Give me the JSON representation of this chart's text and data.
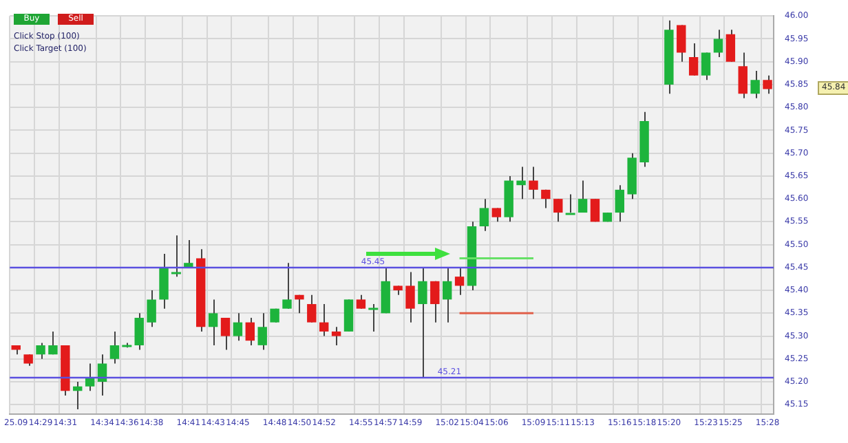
{
  "chart_data": {
    "type": "candlestick",
    "categories": [
      "25.09",
      null,
      "14:29",
      null,
      "14:31",
      null,
      null,
      "14:34",
      null,
      "14:36",
      null,
      "14:38",
      null,
      null,
      "14:41",
      null,
      "14:43",
      null,
      "14:45",
      null,
      null,
      "14:48",
      null,
      "14:50",
      null,
      "14:52",
      null,
      null,
      "14:55",
      null,
      "14:57",
      null,
      "14:59",
      null,
      null,
      "15:02",
      null,
      "15:04",
      null,
      "15:06",
      null,
      null,
      "15:09",
      null,
      "15:11",
      null,
      "15:13",
      null,
      null,
      "15:16",
      null,
      "15:18",
      null,
      "15:20",
      null,
      null,
      "15:23",
      null,
      "15:25",
      null,
      null,
      "15:28"
    ],
    "ohlc": [
      [
        45.28,
        45.28,
        45.26,
        45.27
      ],
      [
        45.26,
        45.26,
        45.235,
        45.24
      ],
      [
        45.26,
        45.285,
        45.25,
        45.28
      ],
      [
        45.26,
        45.31,
        45.26,
        45.28
      ],
      [
        45.28,
        45.28,
        45.17,
        45.18
      ],
      [
        45.18,
        45.2,
        45.14,
        45.19
      ],
      [
        45.19,
        45.24,
        45.18,
        45.21
      ],
      [
        45.2,
        45.26,
        45.17,
        45.24
      ],
      [
        45.25,
        45.31,
        45.24,
        45.28
      ],
      [
        45.28,
        45.285,
        45.275,
        45.28
      ],
      [
        45.28,
        45.35,
        45.27,
        45.34
      ],
      [
        45.33,
        45.4,
        45.32,
        45.38
      ],
      [
        45.38,
        45.48,
        45.36,
        45.45
      ],
      [
        45.44,
        45.52,
        45.43,
        45.44
      ],
      [
        45.45,
        45.51,
        45.45,
        45.46
      ],
      [
        45.47,
        45.49,
        45.31,
        45.32
      ],
      [
        45.32,
        45.38,
        45.28,
        45.35
      ],
      [
        45.34,
        45.34,
        45.27,
        45.3
      ],
      [
        45.3,
        45.35,
        45.29,
        45.33
      ],
      [
        45.33,
        45.34,
        45.28,
        45.29
      ],
      [
        45.28,
        45.35,
        45.27,
        45.32
      ],
      [
        45.33,
        45.36,
        45.33,
        45.36
      ],
      [
        45.36,
        45.46,
        45.36,
        45.38
      ],
      [
        45.39,
        45.39,
        45.35,
        45.38
      ],
      [
        45.37,
        45.39,
        45.33,
        45.33
      ],
      [
        45.33,
        45.37,
        45.3,
        45.31
      ],
      [
        45.31,
        45.32,
        45.28,
        45.3
      ],
      [
        45.31,
        45.38,
        45.31,
        45.38
      ],
      [
        45.38,
        45.39,
        45.36,
        45.36
      ],
      [
        45.36,
        45.37,
        45.31,
        45.36
      ],
      [
        45.35,
        45.45,
        45.35,
        45.42
      ],
      [
        45.41,
        45.41,
        45.39,
        45.4
      ],
      [
        45.41,
        45.44,
        45.33,
        45.36
      ],
      [
        45.37,
        45.45,
        45.21,
        45.42
      ],
      [
        45.42,
        45.42,
        45.33,
        45.37
      ],
      [
        45.38,
        45.45,
        45.33,
        45.42
      ],
      [
        45.43,
        45.45,
        45.39,
        45.41
      ],
      [
        45.41,
        45.55,
        45.4,
        45.54
      ],
      [
        45.54,
        45.6,
        45.53,
        45.58
      ],
      [
        45.58,
        45.58,
        45.55,
        45.56
      ],
      [
        45.56,
        45.65,
        45.55,
        45.64
      ],
      [
        45.63,
        45.67,
        45.6,
        45.64
      ],
      [
        45.64,
        45.67,
        45.6,
        45.62
      ],
      [
        45.62,
        45.62,
        45.58,
        45.6
      ],
      [
        45.6,
        45.6,
        45.55,
        45.57
      ],
      [
        45.57,
        45.61,
        45.57,
        45.57
      ],
      [
        45.57,
        45.64,
        45.57,
        45.6
      ],
      [
        45.6,
        45.6,
        45.55,
        45.55
      ],
      [
        45.55,
        45.57,
        45.55,
        45.57
      ],
      [
        45.57,
        45.63,
        45.55,
        45.62
      ],
      [
        45.61,
        45.7,
        45.6,
        45.69
      ],
      [
        45.68,
        45.79,
        45.67,
        45.77
      ],
      null,
      [
        45.85,
        45.99,
        45.83,
        45.97
      ],
      [
        45.98,
        45.98,
        45.9,
        45.92
      ],
      [
        45.91,
        45.94,
        45.87,
        45.87
      ],
      [
        45.87,
        45.92,
        45.86,
        45.92
      ],
      [
        45.92,
        45.97,
        45.91,
        45.95
      ],
      [
        45.96,
        45.97,
        45.9,
        45.9
      ],
      [
        45.89,
        45.92,
        45.82,
        45.83
      ],
      [
        45.83,
        45.88,
        45.82,
        45.86
      ],
      [
        45.86,
        45.87,
        45.83,
        45.84
      ]
    ],
    "colors": [
      "#e31b1b",
      "#e31b1b",
      "#1db43c",
      "#1db43c",
      "#e31b1b",
      "#1db43c",
      "#1db43c",
      "#1db43c",
      "#1db43c",
      "#1db43c",
      "#1db43c",
      "#1db43c",
      "#1db43c",
      "#1db43c",
      "#1db43c",
      "#e31b1b",
      "#1db43c",
      "#e31b1b",
      "#1db43c",
      "#e31b1b",
      "#1db43c",
      "#1db43c",
      "#1db43c",
      "#e31b1b",
      "#e31b1b",
      "#e31b1b",
      "#e31b1b",
      "#1db43c",
      "#e31b1b",
      "#1db43c",
      "#1db43c",
      "#e31b1b",
      "#e31b1b",
      "#1db43c",
      "#e31b1b",
      "#1db43c",
      "#e31b1b",
      "#1db43c",
      "#1db43c",
      "#e31b1b",
      "#1db43c",
      "#1db43c",
      "#e31b1b",
      "#e31b1b",
      "#e31b1b",
      "#1db43c",
      "#1db43c",
      "#e31b1b",
      "#1db43c",
      "#1db43c",
      "#1db43c",
      "#1db43c",
      null,
      "#1db43c",
      "#e31b1b",
      "#e31b1b",
      "#1db43c",
      "#1db43c",
      "#e31b1b",
      "#e31b1b",
      "#1db43c",
      "#e31b1b"
    ],
    "series": [
      {
        "type": "line",
        "color": "#66e066",
        "values": [
          null,
          null,
          null,
          null,
          null,
          null,
          null,
          null,
          null,
          null,
          null,
          null,
          null,
          null,
          null,
          null,
          null,
          null,
          null,
          null,
          null,
          null,
          null,
          null,
          null,
          null,
          null,
          null,
          null,
          null,
          null,
          null,
          null,
          null,
          null,
          null,
          45.47,
          45.47,
          45.47,
          45.47,
          45.47,
          45.47,
          45.47,
          null,
          null,
          null,
          null,
          null,
          null,
          null,
          null,
          null,
          null,
          null,
          null,
          null,
          null,
          null,
          null,
          null,
          null,
          null
        ]
      },
      {
        "type": "line",
        "color": "#e0604a",
        "values": [
          null,
          null,
          null,
          null,
          null,
          null,
          null,
          null,
          null,
          null,
          null,
          null,
          null,
          null,
          null,
          null,
          null,
          null,
          null,
          null,
          null,
          null,
          null,
          null,
          null,
          null,
          null,
          null,
          null,
          null,
          null,
          null,
          null,
          null,
          null,
          null,
          45.35,
          45.35,
          45.35,
          45.35,
          45.35,
          45.35,
          45.35,
          null,
          null,
          null,
          null,
          null,
          null,
          null,
          null,
          null,
          null,
          null,
          null,
          null,
          null,
          null,
          null,
          null,
          null,
          null
        ]
      }
    ],
    "ylim": [
      45.13,
      46.0
    ],
    "yticks": [
      45.15,
      {
        "value": 45.2,
        "label": "45.20"
      },
      45.25,
      {
        "value": 45.3,
        "label": "45.30"
      },
      45.35,
      {
        "value": 45.4,
        "label": "45.40"
      },
      45.45,
      {
        "value": 45.5,
        "label": "45.50"
      },
      45.55,
      {
        "value": 45.6,
        "label": "45.60"
      },
      45.65,
      {
        "value": 45.7,
        "label": "45.70"
      },
      45.75,
      {
        "value": 45.8,
        "label": "45.80"
      },
      45.85,
      {
        "value": 45.9,
        "label": "45.90"
      },
      45.95,
      {
        "value": 46.0,
        "label": "46.00"
      }
    ],
    "ref_lines": [
      {
        "axis": "y",
        "value": 45.45,
        "label": "45.45",
        "color": "#5a4fe0"
      },
      {
        "axis": "y",
        "value": 45.21,
        "label": "45.21",
        "color": "#5a4fe0"
      }
    ],
    "annotations": [
      "Buy",
      "Sell",
      "Click Stop (100)",
      "Click Target (100)",
      "45.84"
    ],
    "grid": true,
    "legend": false,
    "marker": "none"
  }
}
